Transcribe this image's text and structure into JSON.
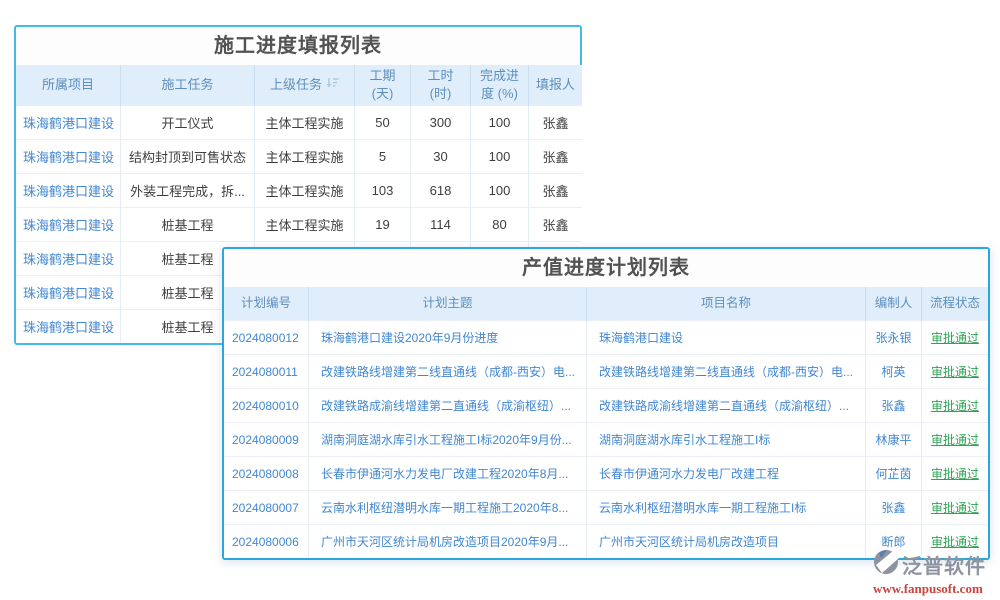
{
  "colors": {
    "panel1_border": "#45B9E9",
    "panel2_border": "#29A7DE",
    "header_bg": "#DFEEFA",
    "header_text": "#5E8FBC",
    "link_blue": "#4287D1",
    "status_green": "#2FA353",
    "body_text": "#3E3E3E",
    "title_text": "#525252",
    "brand_gray": "#8D93A1",
    "url_red": "#CB4440"
  },
  "progress_table": {
    "title": "施工进度填报列表",
    "columns": [
      {
        "label": "所属项目"
      },
      {
        "label": "施工任务"
      },
      {
        "label": "上级任务",
        "sort": true
      },
      {
        "label": "工期\n(天)"
      },
      {
        "label": "工时\n(时)"
      },
      {
        "label": "完成进\n度 (%)"
      },
      {
        "label": "填报人"
      }
    ],
    "rows": [
      {
        "project": "珠海鹤港口建设",
        "task": "开工仪式",
        "parent": "主体工程实施",
        "days": "50",
        "hours": "300",
        "progress": "100",
        "reporter": "张鑫"
      },
      {
        "project": "珠海鹤港口建设",
        "task": "结构封顶到可售状态",
        "parent": "主体工程实施",
        "days": "5",
        "hours": "30",
        "progress": "100",
        "reporter": "张鑫"
      },
      {
        "project": "珠海鹤港口建设",
        "task": "外装工程完成，拆...",
        "parent": "主体工程实施",
        "days": "103",
        "hours": "618",
        "progress": "100",
        "reporter": "张鑫"
      },
      {
        "project": "珠海鹤港口建设",
        "task": "桩基工程",
        "parent": "主体工程实施",
        "days": "19",
        "hours": "114",
        "progress": "80",
        "reporter": "张鑫"
      },
      {
        "project": "珠海鹤港口建设",
        "task": "桩基工程",
        "parent": "",
        "days": "",
        "hours": "",
        "progress": "",
        "reporter": ""
      },
      {
        "project": "珠海鹤港口建设",
        "task": "桩基工程",
        "parent": "",
        "days": "",
        "hours": "",
        "progress": "",
        "reporter": ""
      },
      {
        "project": "珠海鹤港口建设",
        "task": "桩基工程",
        "parent": "",
        "days": "",
        "hours": "",
        "progress": "",
        "reporter": ""
      }
    ]
  },
  "plan_table": {
    "title": "产值进度计划列表",
    "columns": [
      {
        "label": "计划编号"
      },
      {
        "label": "计划主题"
      },
      {
        "label": "项目名称"
      },
      {
        "label": "编制人"
      },
      {
        "label": "流程状态"
      }
    ],
    "rows": [
      {
        "no": "2024080012",
        "subject": "珠海鹤港口建设2020年9月份进度",
        "project": "珠海鹤港口建设",
        "author": "张永银",
        "status": "审批通过"
      },
      {
        "no": "2024080011",
        "subject": "改建铁路线增建第二线直通线（成都-西安）电...",
        "project": "改建铁路线增建第二线直通线（成都-西安）电...",
        "author": "柯英",
        "status": "审批通过"
      },
      {
        "no": "2024080010",
        "subject": "改建铁路成渝线增建第二直通线（成渝枢纽）...",
        "project": "改建铁路成渝线增建第二直通线（成渝枢纽）...",
        "author": "张鑫",
        "status": "审批通过"
      },
      {
        "no": "2024080009",
        "subject": "湖南洞庭湖水库引水工程施工I标2020年9月份...",
        "project": "湖南洞庭湖水库引水工程施工I标",
        "author": "林康平",
        "status": "审批通过"
      },
      {
        "no": "2024080008",
        "subject": "长春市伊通河水力发电厂改建工程2020年8月...",
        "project": "长春市伊通河水力发电厂改建工程",
        "author": "何芷茵",
        "status": "审批通过"
      },
      {
        "no": "2024080007",
        "subject": "云南水利枢纽潜明水库一期工程施工2020年8...",
        "project": "云南水利枢纽潜明水库一期工程施工I标",
        "author": "张鑫",
        "status": "审批通过"
      },
      {
        "no": "2024080006",
        "subject": "广州市天河区统计局机房改造项目2020年9月...",
        "project": "广州市天河区统计局机房改造项目",
        "author": "断郎",
        "status": "审批通过"
      }
    ]
  },
  "watermark": {
    "brand": "泛普软件",
    "url": "www.fanpusoft.com"
  }
}
